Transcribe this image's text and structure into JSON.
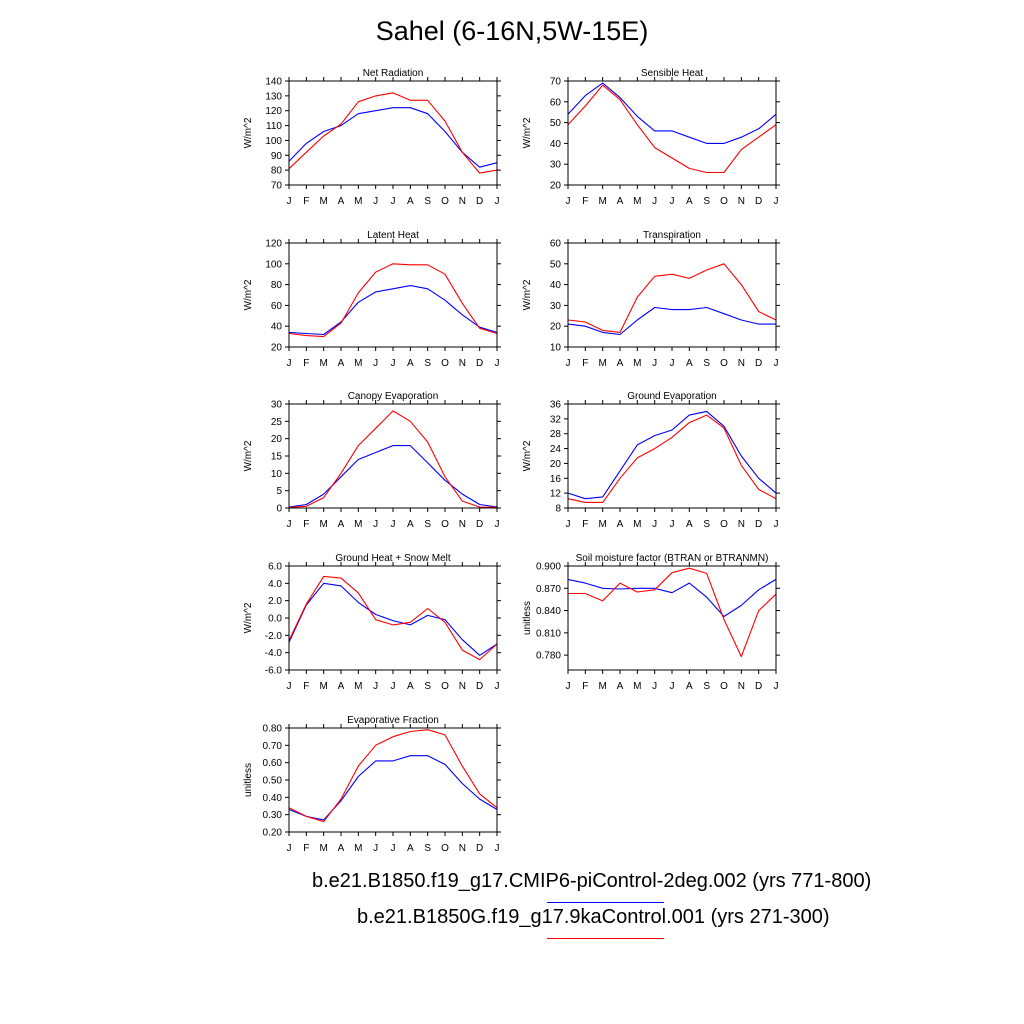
{
  "title": "Sahel (6-16N,5W-15E)",
  "colors": {
    "series_1": "#0000ff",
    "series_2": "#ff0000"
  },
  "month_labels": [
    "J",
    "F",
    "M",
    "A",
    "M",
    "J",
    "J",
    "A",
    "S",
    "O",
    "N",
    "D",
    "J"
  ],
  "legend": [
    {
      "label": "b.e21.B1850.f19_g17.CMIP6-piControl-2deg.002 (yrs 771-800)",
      "color": "#0000ff"
    },
    {
      "label": "b.e21.B1850G.f19_g17.9kaControl.001 (yrs 271-300)",
      "color": "#ff0000"
    }
  ],
  "chart_data": [
    {
      "type": "line",
      "title": "Net Radiation",
      "ylabel": "W/m^2",
      "ylim": [
        70,
        140
      ],
      "yticks": [
        "70",
        "80",
        "90",
        "100",
        "110",
        "120",
        "130",
        "140"
      ],
      "series": [
        {
          "values": [
            86,
            98,
            106,
            110,
            118,
            120,
            122,
            122,
            118,
            106,
            92,
            82,
            85
          ]
        },
        {
          "values": [
            81,
            92,
            103,
            111,
            126,
            130,
            132,
            127,
            127,
            113,
            92,
            78,
            80
          ]
        }
      ]
    },
    {
      "type": "line",
      "title": "Sensible Heat",
      "ylabel": "W/m^2",
      "ylim": [
        20,
        70
      ],
      "yticks": [
        "20",
        "30",
        "40",
        "50",
        "60",
        "70"
      ],
      "series": [
        {
          "values": [
            54,
            63,
            69,
            62,
            53,
            46,
            46,
            43,
            40,
            40,
            43,
            47,
            54
          ]
        },
        {
          "values": [
            49,
            58,
            68,
            61,
            49,
            38,
            33,
            28,
            26,
            26,
            37,
            43,
            49
          ]
        }
      ]
    },
    {
      "type": "line",
      "title": "Latent Heat",
      "ylabel": "W/m^2",
      "ylim": [
        20,
        120
      ],
      "yticks": [
        "20",
        "40",
        "60",
        "80",
        "100",
        "120"
      ],
      "series": [
        {
          "values": [
            34,
            33,
            32,
            44,
            63,
            73,
            76,
            79,
            76,
            65,
            51,
            39,
            34
          ]
        },
        {
          "values": [
            33,
            31,
            30,
            43,
            72,
            92,
            100,
            99,
            99,
            90,
            62,
            38,
            33
          ]
        }
      ]
    },
    {
      "type": "line",
      "title": "Transpiration",
      "ylabel": "W/m^2",
      "ylim": [
        10,
        60
      ],
      "yticks": [
        "10",
        "20",
        "30",
        "40",
        "50",
        "60"
      ],
      "series": [
        {
          "values": [
            21,
            20,
            17,
            16,
            23,
            29,
            28,
            28,
            29,
            26,
            23,
            21,
            21
          ]
        },
        {
          "values": [
            23,
            22,
            18,
            17,
            34,
            44,
            45,
            43,
            47,
            50,
            40,
            27,
            23
          ]
        }
      ]
    },
    {
      "type": "line",
      "title": "Canopy Evaporation",
      "ylabel": "W/m^2",
      "ylim": [
        0,
        30
      ],
      "yticks": [
        "0",
        "5",
        "10",
        "15",
        "20",
        "25",
        "30"
      ],
      "series": [
        {
          "values": [
            0.3,
            1,
            4,
            9,
            14,
            16,
            18,
            18,
            13,
            8,
            4,
            1,
            0.3
          ]
        },
        {
          "values": [
            0.2,
            0.5,
            3,
            10,
            18,
            23,
            28,
            25,
            19,
            9,
            2,
            0.3,
            0.2
          ]
        }
      ]
    },
    {
      "type": "line",
      "title": "Ground Evaporation",
      "ylabel": "W/m^2",
      "ylim": [
        8,
        36
      ],
      "yticks": [
        "8",
        "12",
        "16",
        "20",
        "24",
        "28",
        "32",
        "36"
      ],
      "series": [
        {
          "values": [
            12,
            10.5,
            11,
            18,
            25,
            27.5,
            29,
            33,
            34,
            30,
            22,
            16,
            12
          ]
        },
        {
          "values": [
            10.5,
            9.5,
            9.5,
            16,
            21.5,
            24,
            27,
            31,
            33,
            29.5,
            19.5,
            13,
            10.5
          ]
        }
      ]
    },
    {
      "type": "line",
      "title": "Ground Heat + Snow Melt",
      "ylabel": "W/m^2",
      "ylim": [
        -6,
        6
      ],
      "yticks": [
        "-6.0",
        "-4.0",
        "-2.0",
        "0.0",
        "2.0",
        "4.0",
        "6.0"
      ],
      "series": [
        {
          "values": [
            -2.8,
            1.5,
            4.0,
            3.7,
            1.8,
            0.4,
            -0.3,
            -0.8,
            0.3,
            -0.2,
            -2.5,
            -4.3,
            -3.0
          ]
        },
        {
          "values": [
            -2.6,
            1.6,
            4.8,
            4.6,
            2.9,
            -0.2,
            -0.8,
            -0.5,
            1.1,
            -0.5,
            -3.7,
            -4.8,
            -3.0
          ]
        }
      ]
    },
    {
      "type": "line",
      "title": "Soil moisture factor (BTRAN or BTRANMN)",
      "ylabel": "unitless",
      "ylim": [
        0.76,
        0.9
      ],
      "yticks": [
        "0.780",
        "0.810",
        "0.840",
        "0.870",
        "0.900"
      ],
      "series": [
        {
          "values": [
            0.882,
            0.877,
            0.87,
            0.869,
            0.87,
            0.87,
            0.864,
            0.877,
            0.858,
            0.832,
            0.847,
            0.868,
            0.882
          ]
        },
        {
          "values": [
            0.863,
            0.863,
            0.853,
            0.877,
            0.865,
            0.868,
            0.891,
            0.897,
            0.89,
            0.828,
            0.778,
            0.84,
            0.862
          ]
        }
      ]
    },
    {
      "type": "line",
      "title": "Evaporative Fraction",
      "ylabel": "unitless",
      "ylim": [
        0.2,
        0.8
      ],
      "yticks": [
        "0.20",
        "0.30",
        "0.40",
        "0.50",
        "0.60",
        "0.70",
        "0.80"
      ],
      "series": [
        {
          "values": [
            0.33,
            0.29,
            0.27,
            0.38,
            0.52,
            0.61,
            0.61,
            0.64,
            0.64,
            0.59,
            0.48,
            0.39,
            0.33
          ]
        },
        {
          "values": [
            0.34,
            0.29,
            0.26,
            0.39,
            0.58,
            0.7,
            0.75,
            0.78,
            0.79,
            0.76,
            0.58,
            0.42,
            0.34
          ]
        }
      ]
    }
  ]
}
